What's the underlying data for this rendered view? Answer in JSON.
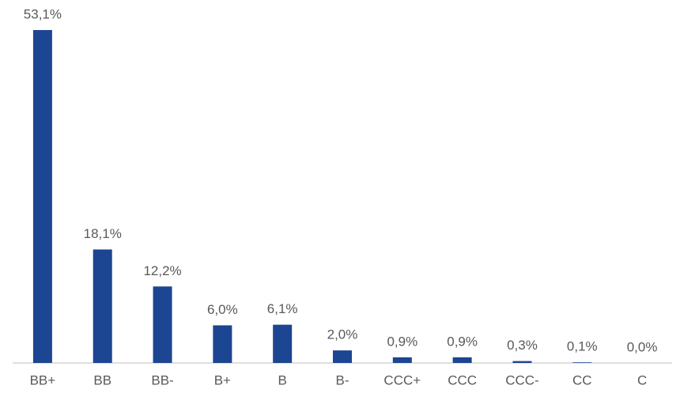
{
  "chart_data": {
    "type": "bar",
    "categories": [
      "BB+",
      "BB",
      "BB-",
      "B+",
      "B",
      "B-",
      "CCC+",
      "CCC",
      "CCC-",
      "CC",
      "C"
    ],
    "values": [
      53.1,
      18.1,
      12.2,
      6.0,
      6.1,
      2.0,
      0.9,
      0.9,
      0.3,
      0.1,
      0.0
    ],
    "value_labels": [
      "53,1%",
      "18,1%",
      "12,2%",
      "6,0%",
      "6,1%",
      "2,0%",
      "0,9%",
      "0,9%",
      "0,3%",
      "0,1%",
      "0,0%"
    ],
    "color": "#1c4592"
  }
}
